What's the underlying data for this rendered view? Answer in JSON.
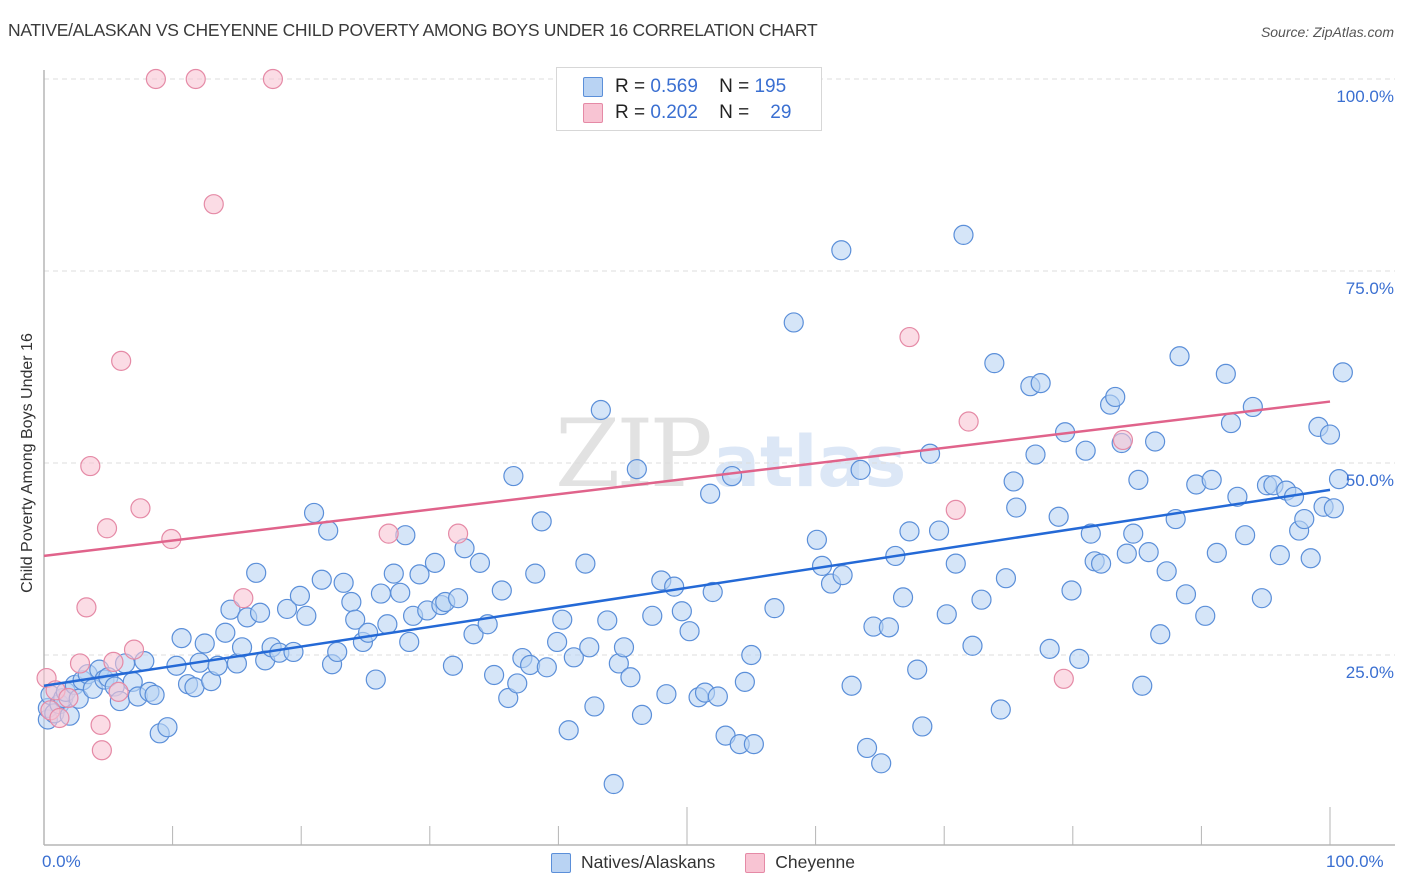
{
  "title": "NATIVE/ALASKAN VS CHEYENNE CHILD POVERTY AMONG BOYS UNDER 16 CORRELATION CHART",
  "source": "Source: ZipAtlas.com",
  "watermark": {
    "zip": "ZIP",
    "atlas": "atlas"
  },
  "legend_top": [
    {
      "r_label": "R =",
      "r_value": "0.569",
      "n_label": "N =",
      "n_value": "195"
    },
    {
      "r_label": "R =",
      "r_value": "0.202",
      "n_label": "N =",
      "n_value": "29"
    }
  ],
  "colors": {
    "natives_fill": "#b9d3f3",
    "natives_stroke": "#5b8fd9",
    "natives_line": "#2469d6",
    "cheyenne_fill": "#f8c4d3",
    "cheyenne_stroke": "#e58aa6",
    "cheyenne_line": "#e0638b",
    "tick_label": "#3a6fd1"
  },
  "chart_data": {
    "type": "scatter",
    "title": "NATIVE/ALASKAN VS CHEYENNE CHILD POVERTY AMONG BOYS UNDER 16 CORRELATION CHART",
    "xlabel": "",
    "ylabel": "Child Poverty Among Boys Under 16",
    "xlim": [
      0,
      100
    ],
    "ylim": [
      0,
      100
    ],
    "x_tick_labels": [
      "0.0%",
      "100.0%"
    ],
    "y_tick_labels": [
      {
        "value": 25,
        "label": "25.0%"
      },
      {
        "value": 50,
        "label": "50.0%"
      },
      {
        "value": 75,
        "label": "75.0%"
      },
      {
        "value": 100,
        "label": "100.0%"
      }
    ],
    "x_minor_ticks": [
      0,
      10,
      20,
      30,
      40,
      50,
      60,
      70,
      80,
      90,
      100
    ],
    "grid": "horizontal-dashed",
    "legend_position": "bottom-center",
    "series": [
      {
        "name": "Natives/Alaskans",
        "r": 0.569,
        "n": 195,
        "trend": {
          "x0": 0,
          "y0": 21.0,
          "x1": 100,
          "y1": 46.5
        },
        "points": [
          [
            0.3,
            16.6
          ],
          [
            0.3,
            18.1
          ],
          [
            0.5,
            19.8
          ],
          [
            0.8,
            17.4
          ],
          [
            1.2,
            18.6
          ],
          [
            1.5,
            19.4
          ],
          [
            1.7,
            20.2
          ],
          [
            2.0,
            17.1
          ],
          [
            2.4,
            21.1
          ],
          [
            2.7,
            19.3
          ],
          [
            3.0,
            21.7
          ],
          [
            3.4,
            22.5
          ],
          [
            3.8,
            20.6
          ],
          [
            4.3,
            23.1
          ],
          [
            4.7,
            21.8
          ],
          [
            5.0,
            22.1
          ],
          [
            5.5,
            20.9
          ],
          [
            5.9,
            19.0
          ],
          [
            6.3,
            23.9
          ],
          [
            6.9,
            21.5
          ],
          [
            7.3,
            19.6
          ],
          [
            7.8,
            24.2
          ],
          [
            8.2,
            20.2
          ],
          [
            8.6,
            19.8
          ],
          [
            9.0,
            14.8
          ],
          [
            9.6,
            15.6
          ],
          [
            10.3,
            23.6
          ],
          [
            10.7,
            27.2
          ],
          [
            11.2,
            21.2
          ],
          [
            11.7,
            20.8
          ],
          [
            12.1,
            24.0
          ],
          [
            12.5,
            26.5
          ],
          [
            13.0,
            21.6
          ],
          [
            13.5,
            23.6
          ],
          [
            14.1,
            27.9
          ],
          [
            14.5,
            30.9
          ],
          [
            15.0,
            23.9
          ],
          [
            15.4,
            26.0
          ],
          [
            15.8,
            29.9
          ],
          [
            16.5,
            35.7
          ],
          [
            16.8,
            30.5
          ],
          [
            17.2,
            24.3
          ],
          [
            17.7,
            26.0
          ],
          [
            18.3,
            25.3
          ],
          [
            18.9,
            31.0
          ],
          [
            19.4,
            25.4
          ],
          [
            19.9,
            32.7
          ],
          [
            20.4,
            30.1
          ],
          [
            21.0,
            43.5
          ],
          [
            21.6,
            34.8
          ],
          [
            22.1,
            41.2
          ],
          [
            22.4,
            23.8
          ],
          [
            22.8,
            25.4
          ],
          [
            23.3,
            34.4
          ],
          [
            23.9,
            31.9
          ],
          [
            24.2,
            29.6
          ],
          [
            24.8,
            26.7
          ],
          [
            25.2,
            27.9
          ],
          [
            25.8,
            21.8
          ],
          [
            26.2,
            33.0
          ],
          [
            26.7,
            29.0
          ],
          [
            27.2,
            35.6
          ],
          [
            27.7,
            33.1
          ],
          [
            28.1,
            40.6
          ],
          [
            28.4,
            26.7
          ],
          [
            28.7,
            30.1
          ],
          [
            29.2,
            35.5
          ],
          [
            29.8,
            30.8
          ],
          [
            30.4,
            37.0
          ],
          [
            30.9,
            31.5
          ],
          [
            31.2,
            31.9
          ],
          [
            31.8,
            23.6
          ],
          [
            32.2,
            32.4
          ],
          [
            32.7,
            38.9
          ],
          [
            33.4,
            27.7
          ],
          [
            33.9,
            37.0
          ],
          [
            34.5,
            29.0
          ],
          [
            35.0,
            22.4
          ],
          [
            35.6,
            33.4
          ],
          [
            36.1,
            19.4
          ],
          [
            36.5,
            48.3
          ],
          [
            36.8,
            21.3
          ],
          [
            37.2,
            24.6
          ],
          [
            37.8,
            23.7
          ],
          [
            38.2,
            35.6
          ],
          [
            38.7,
            42.4
          ],
          [
            39.1,
            23.4
          ],
          [
            39.9,
            26.7
          ],
          [
            40.3,
            29.6
          ],
          [
            40.8,
            15.2
          ],
          [
            41.2,
            24.7
          ],
          [
            42.1,
            36.9
          ],
          [
            42.4,
            26.0
          ],
          [
            42.8,
            18.3
          ],
          [
            43.3,
            56.9
          ],
          [
            43.8,
            29.5
          ],
          [
            44.3,
            8.2
          ],
          [
            44.7,
            23.9
          ],
          [
            45.1,
            26.0
          ],
          [
            45.6,
            22.1
          ],
          [
            46.1,
            49.2
          ],
          [
            46.5,
            17.2
          ],
          [
            47.3,
            30.1
          ],
          [
            48.0,
            34.7
          ],
          [
            48.4,
            19.9
          ],
          [
            49.0,
            33.9
          ],
          [
            49.6,
            30.7
          ],
          [
            50.2,
            28.1
          ],
          [
            50.9,
            19.5
          ],
          [
            51.4,
            20.1
          ],
          [
            51.8,
            46.0
          ],
          [
            52.0,
            33.2
          ],
          [
            52.4,
            19.6
          ],
          [
            53.0,
            14.5
          ],
          [
            53.5,
            48.3
          ],
          [
            54.1,
            13.4
          ],
          [
            54.5,
            21.5
          ],
          [
            55.0,
            25.0
          ],
          [
            55.2,
            13.4
          ],
          [
            56.8,
            31.1
          ],
          [
            58.3,
            68.3
          ],
          [
            60.1,
            40.0
          ],
          [
            60.5,
            36.6
          ],
          [
            61.2,
            34.3
          ],
          [
            62.0,
            77.7
          ],
          [
            62.1,
            35.4
          ],
          [
            62.8,
            21.0
          ],
          [
            63.5,
            49.1
          ],
          [
            64.0,
            12.9
          ],
          [
            64.5,
            28.7
          ],
          [
            65.1,
            10.9
          ],
          [
            65.7,
            28.6
          ],
          [
            66.2,
            37.9
          ],
          [
            66.8,
            32.5
          ],
          [
            67.3,
            41.1
          ],
          [
            67.9,
            23.1
          ],
          [
            68.3,
            15.7
          ],
          [
            68.9,
            51.2
          ],
          [
            69.6,
            41.2
          ],
          [
            70.2,
            30.3
          ],
          [
            70.9,
            36.9
          ],
          [
            71.5,
            79.7
          ],
          [
            72.2,
            26.2
          ],
          [
            72.9,
            32.2
          ],
          [
            73.9,
            63.0
          ],
          [
            74.4,
            17.9
          ],
          [
            74.8,
            35.0
          ],
          [
            75.4,
            47.6
          ],
          [
            75.6,
            44.2
          ],
          [
            76.7,
            60.0
          ],
          [
            77.1,
            51.1
          ],
          [
            77.5,
            60.4
          ],
          [
            78.2,
            25.8
          ],
          [
            78.9,
            43.0
          ],
          [
            79.4,
            54.0
          ],
          [
            79.9,
            33.4
          ],
          [
            80.5,
            24.5
          ],
          [
            81.0,
            51.6
          ],
          [
            81.4,
            40.8
          ],
          [
            81.7,
            37.2
          ],
          [
            82.2,
            36.9
          ],
          [
            82.9,
            57.6
          ],
          [
            83.3,
            58.6
          ],
          [
            83.8,
            52.6
          ],
          [
            84.2,
            38.2
          ],
          [
            84.7,
            40.8
          ],
          [
            85.1,
            47.8
          ],
          [
            85.4,
            21.0
          ],
          [
            85.9,
            38.4
          ],
          [
            86.4,
            52.8
          ],
          [
            86.8,
            27.7
          ],
          [
            87.3,
            35.9
          ],
          [
            88.0,
            42.7
          ],
          [
            88.3,
            63.9
          ],
          [
            88.8,
            32.9
          ],
          [
            89.6,
            47.2
          ],
          [
            90.3,
            30.1
          ],
          [
            90.8,
            47.8
          ],
          [
            91.2,
            38.3
          ],
          [
            91.9,
            61.6
          ],
          [
            92.3,
            55.2
          ],
          [
            92.8,
            45.6
          ],
          [
            93.4,
            40.6
          ],
          [
            94.0,
            57.3
          ],
          [
            94.7,
            32.4
          ],
          [
            95.1,
            47.1
          ],
          [
            95.6,
            47.1
          ],
          [
            96.1,
            38.0
          ],
          [
            96.6,
            46.4
          ],
          [
            97.2,
            45.6
          ],
          [
            97.6,
            41.2
          ],
          [
            98.0,
            42.7
          ],
          [
            98.5,
            37.6
          ],
          [
            99.1,
            54.7
          ],
          [
            99.5,
            44.3
          ],
          [
            100.0,
            53.7
          ],
          [
            100.3,
            44.1
          ],
          [
            100.7,
            47.9
          ],
          [
            101.0,
            61.8
          ]
        ]
      },
      {
        "name": "Cheyenne",
        "r": 0.202,
        "n": 29,
        "trend": {
          "x0": 0,
          "y0": 37.9,
          "x1": 100,
          "y1": 58.0
        },
        "points": [
          [
            8.7,
            100.0
          ],
          [
            11.8,
            100.0
          ],
          [
            17.8,
            100.0
          ],
          [
            13.2,
            83.7
          ],
          [
            6.0,
            63.3
          ],
          [
            3.6,
            49.6
          ],
          [
            7.5,
            44.1
          ],
          [
            4.9,
            41.5
          ],
          [
            9.9,
            40.1
          ],
          [
            3.3,
            31.2
          ],
          [
            26.8,
            40.8
          ],
          [
            32.2,
            40.8
          ],
          [
            15.5,
            32.4
          ],
          [
            7.0,
            25.7
          ],
          [
            2.8,
            23.9
          ],
          [
            0.2,
            22.0
          ],
          [
            0.9,
            20.4
          ],
          [
            1.9,
            19.4
          ],
          [
            0.5,
            17.8
          ],
          [
            1.2,
            16.8
          ],
          [
            4.4,
            15.9
          ],
          [
            4.5,
            12.6
          ],
          [
            5.8,
            20.2
          ],
          [
            5.4,
            24.1
          ],
          [
            67.3,
            66.4
          ],
          [
            71.9,
            55.4
          ],
          [
            83.9,
            53.0
          ],
          [
            70.9,
            43.9
          ],
          [
            79.3,
            21.9
          ]
        ]
      }
    ]
  },
  "legend_bottom": [
    {
      "label": "Natives/Alaskans"
    },
    {
      "label": "Cheyenne"
    }
  ]
}
